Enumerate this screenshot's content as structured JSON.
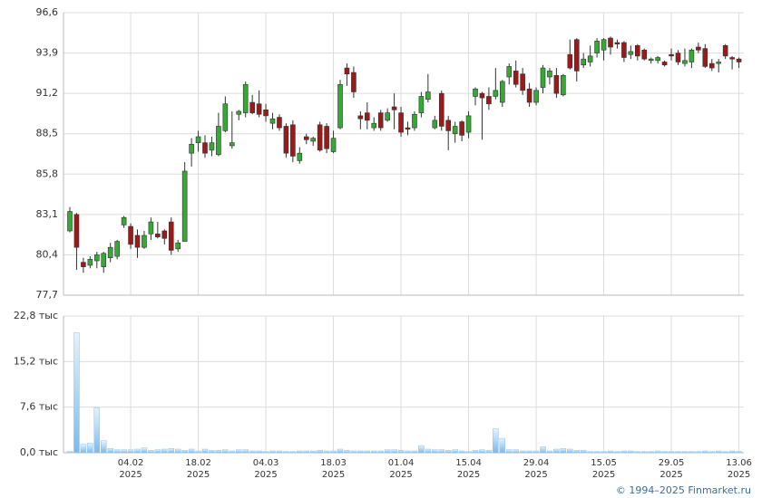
{
  "chart_data": [
    {
      "type": "candlestick",
      "up_color": "#35a835",
      "down_color": "#9a1a1a",
      "grid": true,
      "ylim": [
        77.7,
        96.6
      ],
      "yticks": [
        {
          "value": 77.7,
          "label": "77,7"
        },
        {
          "value": 80.4,
          "label": "80,4"
        },
        {
          "value": 83.1,
          "label": "83,1"
        },
        {
          "value": 85.8,
          "label": "85,8"
        },
        {
          "value": 88.5,
          "label": "88,5"
        },
        {
          "value": 91.2,
          "label": "91,2"
        },
        {
          "value": 93.9,
          "label": "93,9"
        },
        {
          "value": 96.6,
          "label": "96,6"
        }
      ],
      "open": [
        82.0,
        83.1,
        79.9,
        79.7,
        80.0,
        79.6,
        80.2,
        80.3,
        82.4,
        82.3,
        81.7,
        80.9,
        81.8,
        81.8,
        82.0,
        82.6,
        80.8,
        81.3,
        87.2,
        87.9,
        87.9,
        87.4,
        87.1,
        88.7,
        87.7,
        89.8,
        89.9,
        90.6,
        90.5,
        90.1,
        89.2,
        89.6,
        89.0,
        89.1,
        86.7,
        88.3,
        88.0,
        89.1,
        89.0,
        87.3,
        88.9,
        92.9,
        92.6,
        89.7,
        89.9,
        88.9,
        89.9,
        89.4,
        90.3,
        89.9,
        88.9,
        88.9,
        89.9,
        90.8,
        88.9,
        91.2,
        89.4,
        88.5,
        89.3,
        88.6,
        91.0,
        91.2,
        91.0,
        91.0,
        90.6,
        92.3,
        92.7,
        92.5,
        91.5,
        90.6,
        91.6,
        92.3,
        92.4,
        91.1,
        93.8,
        94.8,
        93.1,
        93.3,
        93.9,
        94.1,
        94.9,
        94.6,
        94.6,
        93.8,
        94.4,
        94.1,
        93.4,
        93.4,
        93.3,
        93.8,
        93.9,
        93.2,
        93.3,
        94.3,
        94.2,
        93.2,
        93.2,
        94.4,
        93.6,
        93.5
      ],
      "high": [
        83.6,
        83.2,
        80.2,
        80.3,
        80.6,
        80.6,
        81.2,
        81.4,
        83.0,
        82.5,
        82.1,
        82.0,
        82.9,
        82.6,
        82.1,
        82.9,
        81.4,
        86.6,
        88.2,
        88.7,
        88.4,
        88.3,
        89.9,
        91.0,
        90.0,
        90.1,
        92.0,
        91.1,
        91.4,
        90.5,
        89.9,
        89.8,
        89.2,
        89.4,
        87.6,
        88.5,
        88.3,
        89.3,
        89.2,
        88.7,
        92.1,
        93.2,
        93.0,
        90.0,
        90.6,
        89.6,
        90.1,
        90.2,
        91.2,
        90.3,
        89.3,
        90.0,
        91.3,
        92.5,
        89.7,
        91.4,
        89.7,
        89.3,
        89.4,
        90.0,
        91.6,
        91.3,
        91.6,
        92.9,
        92.1,
        93.2,
        93.4,
        92.9,
        91.9,
        91.6,
        93.1,
        92.9,
        92.9,
        92.5,
        94.8,
        94.9,
        93.9,
        94.4,
        94.9,
        94.9,
        95.0,
        94.8,
        94.7,
        94.4,
        94.5,
        94.2,
        93.6,
        93.7,
        93.4,
        94.2,
        94.1,
        94.2,
        94.2,
        94.6,
        94.5,
        93.5,
        93.5,
        94.5,
        93.7,
        93.6
      ],
      "low": [
        81.9,
        79.4,
        79.2,
        79.5,
        79.5,
        79.2,
        79.9,
        80.1,
        82.2,
        80.8,
        80.2,
        80.8,
        81.4,
        81.5,
        81.1,
        80.4,
        80.6,
        81.3,
        86.3,
        87.3,
        86.9,
        87.0,
        87.0,
        88.6,
        87.5,
        89.4,
        89.6,
        89.8,
        89.6,
        89.3,
        88.8,
        88.7,
        86.9,
        86.6,
        86.5,
        87.8,
        87.7,
        87.3,
        87.2,
        87.2,
        88.8,
        91.7,
        90.9,
        88.8,
        88.8,
        88.7,
        88.7,
        89.3,
        88.8,
        88.3,
        88.4,
        88.7,
        89.6,
        90.6,
        88.8,
        88.7,
        87.4,
        87.9,
        88.0,
        88.2,
        90.4,
        88.1,
        90.1,
        90.8,
        90.3,
        91.8,
        91.6,
        91.1,
        90.3,
        90.4,
        91.2,
        91.8,
        90.9,
        91.0,
        92.8,
        92.0,
        92.9,
        93.0,
        93.6,
        93.4,
        93.8,
        94.2,
        93.3,
        93.5,
        93.4,
        93.4,
        93.2,
        93.2,
        93.0,
        93.4,
        93.1,
        93.0,
        92.9,
        93.9,
        92.9,
        92.7,
        92.6,
        93.5,
        92.8,
        92.9
      ],
      "close": [
        83.3,
        80.9,
        79.6,
        80.1,
        80.4,
        80.5,
        80.9,
        81.3,
        82.9,
        81.1,
        80.9,
        81.7,
        82.6,
        81.6,
        81.5,
        80.7,
        81.2,
        86.0,
        87.8,
        88.3,
        87.2,
        87.9,
        89.0,
        90.5,
        87.9,
        90.0,
        91.8,
        89.9,
        89.8,
        89.7,
        89.5,
        88.9,
        87.2,
        87.0,
        87.2,
        88.1,
        88.2,
        87.4,
        87.5,
        88.2,
        91.8,
        92.5,
        91.3,
        89.5,
        89.4,
        89.2,
        88.9,
        89.9,
        90.1,
        88.6,
        88.8,
        89.8,
        91.0,
        91.3,
        89.4,
        89.0,
        88.7,
        89.0,
        88.4,
        89.7,
        91.5,
        90.9,
        90.5,
        91.4,
        92.0,
        93.0,
        91.8,
        91.4,
        90.6,
        91.4,
        92.9,
        92.7,
        91.2,
        92.4,
        92.9,
        92.7,
        93.5,
        93.7,
        94.7,
        94.8,
        94.3,
        94.5,
        93.6,
        94.0,
        93.7,
        93.5,
        93.5,
        93.6,
        93.1,
        93.7,
        93.3,
        93.4,
        94.1,
        94.1,
        93.0,
        92.9,
        93.3,
        93.7,
        93.5,
        93.3
      ]
    },
    {
      "type": "bar",
      "color": "#8cc4ee",
      "grid": true,
      "ylim": [
        0,
        22.8
      ],
      "yticks": [
        {
          "value": 0,
          "label": "0,0 тыс"
        },
        {
          "value": 7.6,
          "label": "7,6 тыс"
        },
        {
          "value": 15.2,
          "label": "15,2 тыс"
        },
        {
          "value": 22.8,
          "label": "22,8 тыс"
        }
      ],
      "categories": [
        null,
        null,
        null,
        null,
        null,
        null,
        null,
        null,
        null,
        "04.02\n2025",
        null,
        null,
        null,
        null,
        null,
        null,
        null,
        null,
        null,
        "18.02\n2025",
        null,
        null,
        null,
        null,
        null,
        null,
        null,
        null,
        null,
        "04.03\n2025",
        null,
        null,
        null,
        null,
        null,
        null,
        null,
        null,
        null,
        "18.03\n2025",
        null,
        null,
        null,
        null,
        null,
        null,
        null,
        null,
        null,
        "01.04\n2025",
        null,
        null,
        null,
        null,
        null,
        null,
        null,
        null,
        null,
        "15.04\n2025",
        null,
        null,
        null,
        null,
        null,
        null,
        null,
        null,
        null,
        "29.04\n2025",
        null,
        null,
        null,
        null,
        null,
        null,
        null,
        null,
        null,
        "15.05\n2025",
        null,
        null,
        null,
        null,
        null,
        null,
        null,
        null,
        null,
        "29.05\n2025",
        null,
        null,
        null,
        null,
        null,
        null,
        null,
        null,
        null,
        "13.06\n2025"
      ],
      "values": [
        0.2,
        20.0,
        1.4,
        1.6,
        7.5,
        2.0,
        0.7,
        0.5,
        0.5,
        0.5,
        0.6,
        0.8,
        0.4,
        0.5,
        0.6,
        0.7,
        0.6,
        0.4,
        0.6,
        0.3,
        0.6,
        0.4,
        0.4,
        0.5,
        0.3,
        0.5,
        0.5,
        0.3,
        0.3,
        0.2,
        0.3,
        0.3,
        0.2,
        0.2,
        0.3,
        0.3,
        0.3,
        0.4,
        0.3,
        0.3,
        0.6,
        0.4,
        0.3,
        0.3,
        0.3,
        0.3,
        0.3,
        0.5,
        0.5,
        0.4,
        0.3,
        0.3,
        1.2,
        0.6,
        0.5,
        0.5,
        0.4,
        0.5,
        0.3,
        0.2,
        0.4,
        0.5,
        0.4,
        4.0,
        2.4,
        0.5,
        0.5,
        0.3,
        0.3,
        0.3,
        1.0,
        0.3,
        0.6,
        0.7,
        0.6,
        0.4,
        0.4,
        0.2,
        0.2,
        0.2,
        0.3,
        0.2,
        0.3,
        0.3,
        0.2,
        0.2,
        0.2,
        0.3,
        0.2,
        0.2,
        0.2,
        0.2,
        0.2,
        0.2,
        0.3,
        0.2,
        0.3,
        0.2,
        0.3,
        0.2
      ]
    }
  ],
  "footer": "© 1994–2025 Finmarket.ru"
}
